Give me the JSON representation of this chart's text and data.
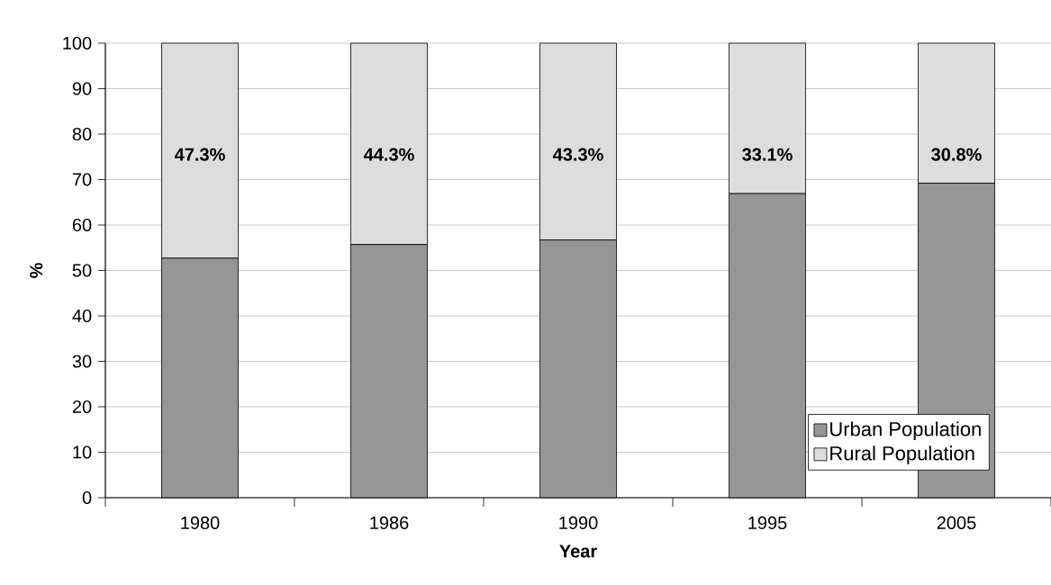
{
  "chart_data": {
    "type": "bar",
    "stacked": true,
    "xlabel": "Year",
    "ylabel": "%",
    "categories": [
      "1980",
      "1986",
      "1990",
      "1995",
      "2005"
    ],
    "series": [
      {
        "name": "Urban Population",
        "color": "#969696",
        "values": [
          52.7,
          55.7,
          56.7,
          66.9,
          69.2
        ]
      },
      {
        "name": "Rural Population",
        "color": "#dddddd",
        "values": [
          47.3,
          44.3,
          43.3,
          33.1,
          30.8
        ],
        "value_labels": [
          "47.3%",
          "44.3%",
          "43.3%",
          "33.1%",
          "30.8%"
        ]
      }
    ],
    "ylim": [
      0,
      100
    ],
    "yticks": [
      0,
      10,
      20,
      30,
      40,
      50,
      60,
      70,
      80,
      90,
      100
    ],
    "grid": "y",
    "legend": "bottom right"
  }
}
